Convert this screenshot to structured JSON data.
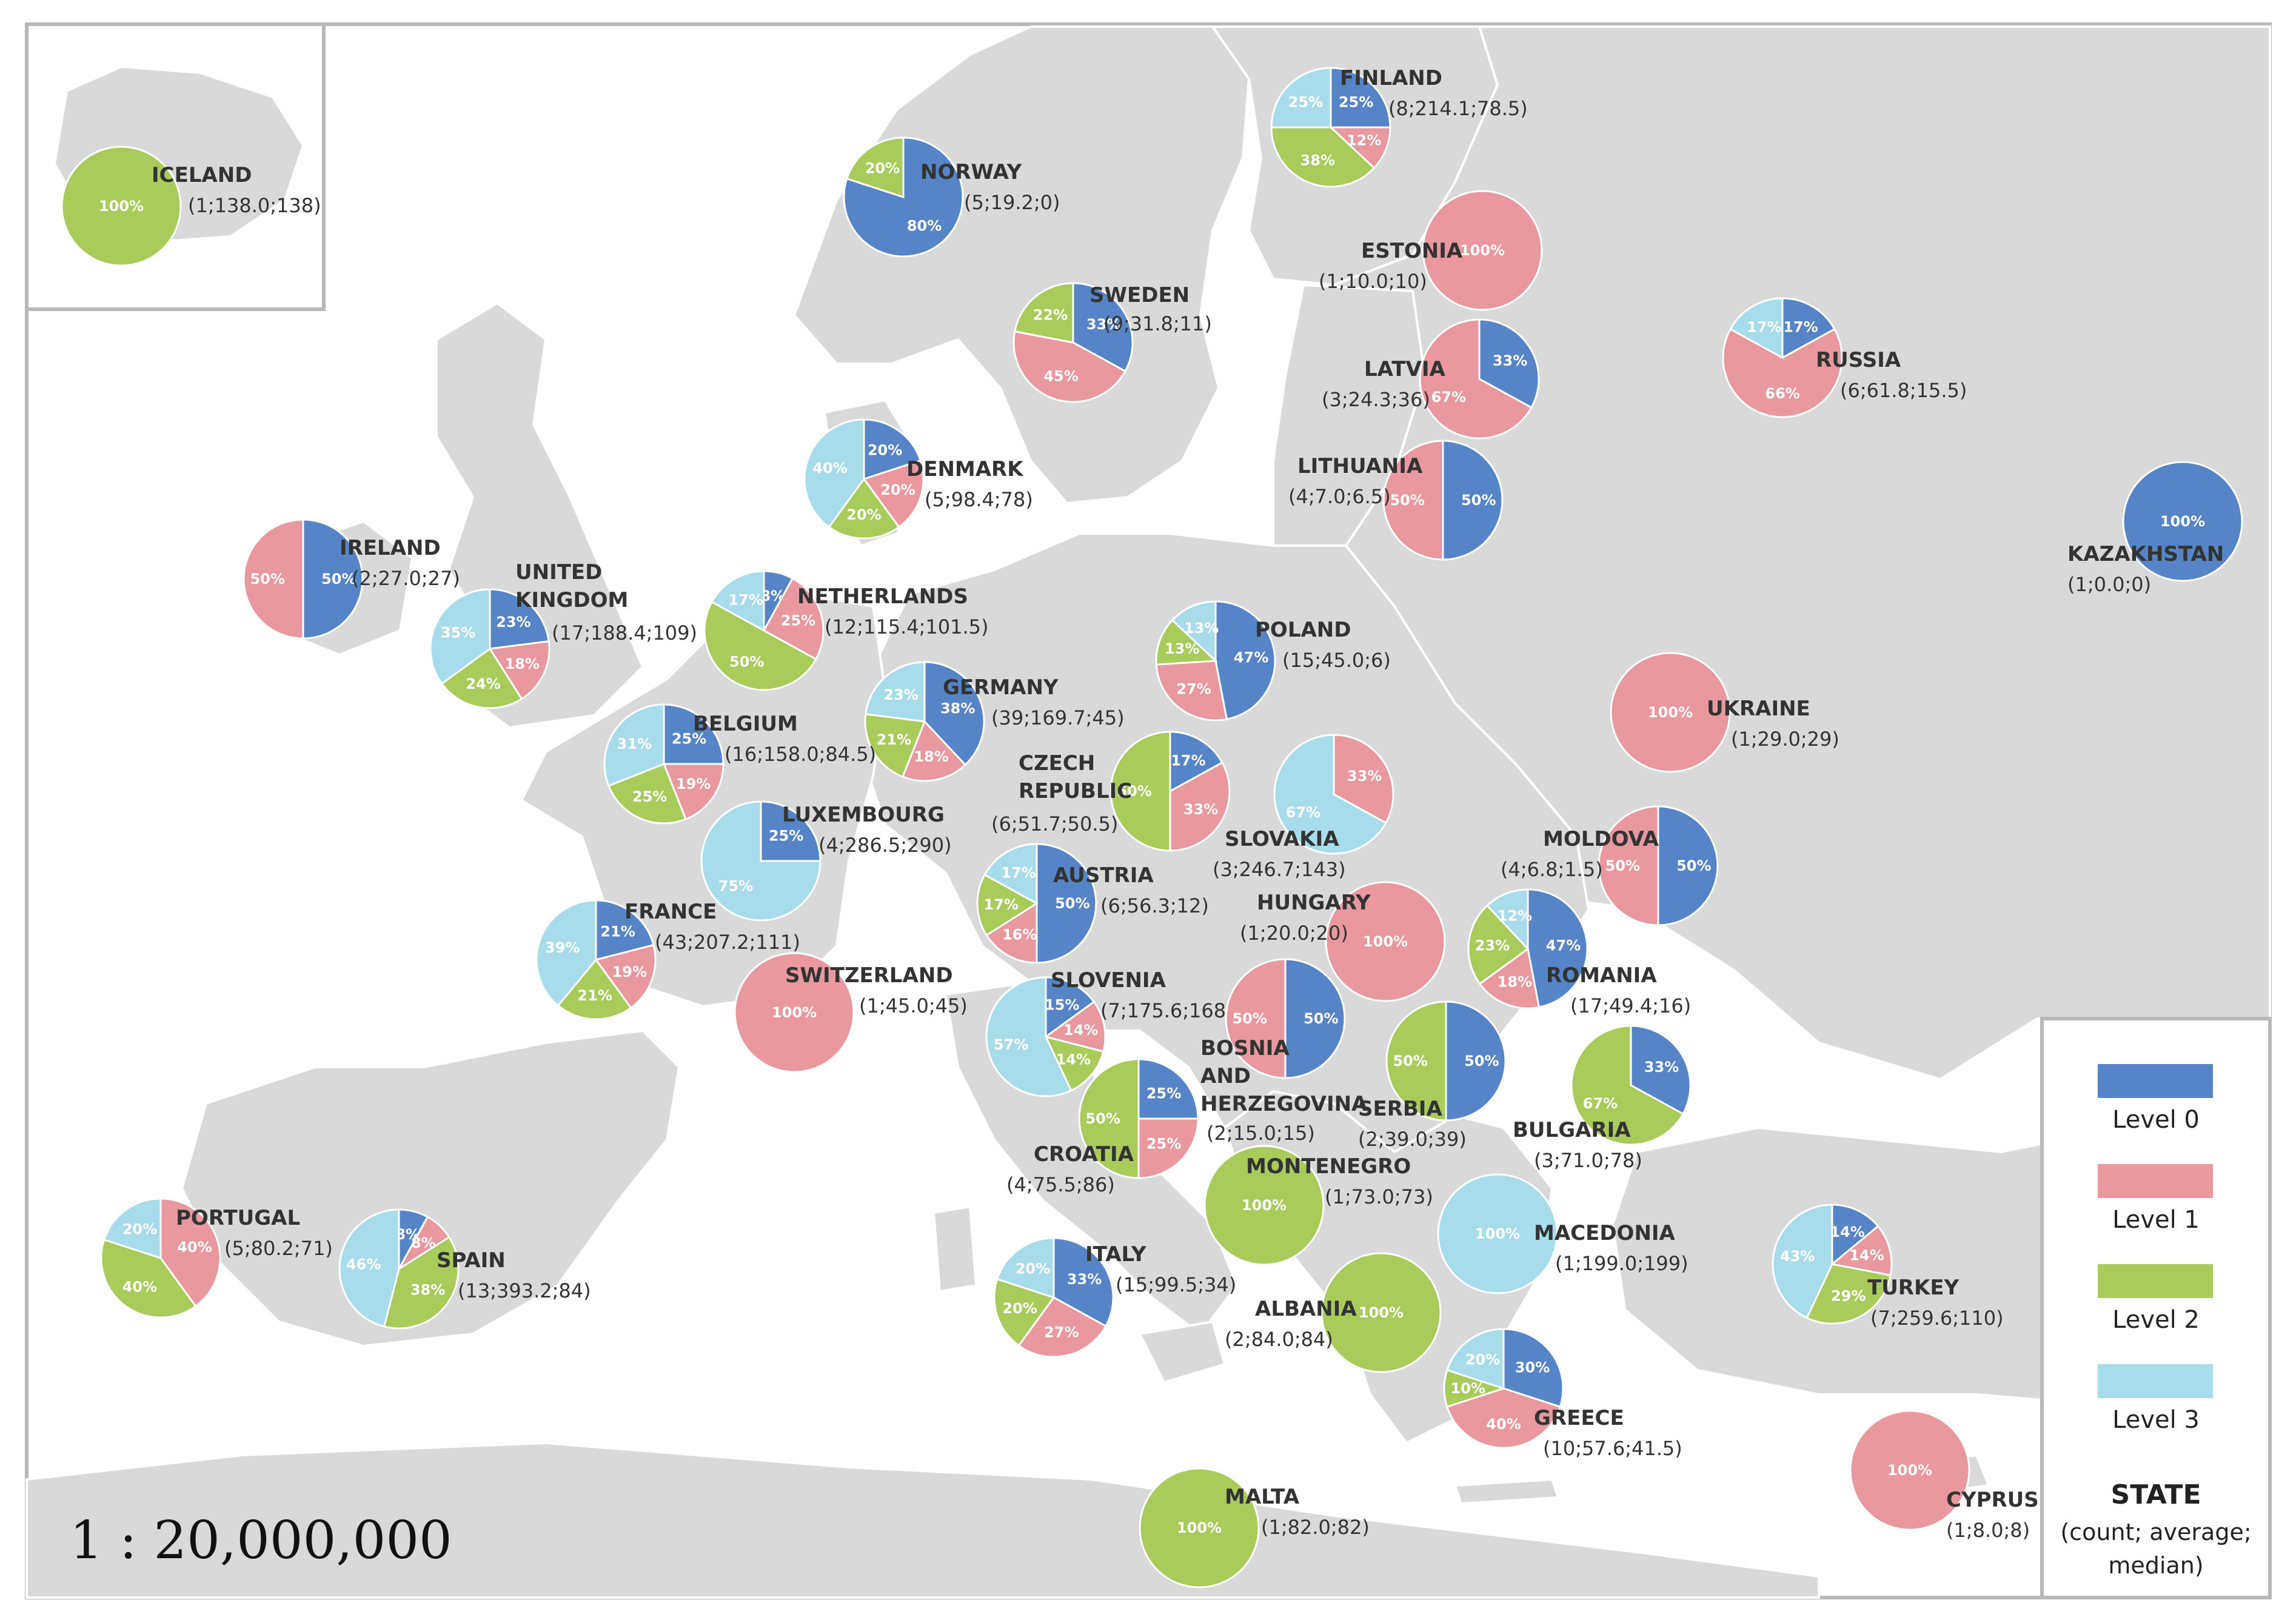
{
  "scale": "1 : 20,000,000",
  "legend": {
    "levels": [
      {
        "key": "L0",
        "label": "Level 0",
        "color": "#5585C6"
      },
      {
        "key": "L1",
        "label": "Level 1",
        "color": "#E8989E"
      },
      {
        "key": "L2",
        "label": "Level 2",
        "color": "#A8CB5C"
      },
      {
        "key": "L3",
        "label": "Level 3",
        "color": "#A7DDEA"
      }
    ],
    "title": "STATE",
    "subtitle_lines": [
      "(count; average;",
      "median)"
    ]
  },
  "countries": [
    {
      "name": [
        "ICELAND"
      ],
      "stats": "(1;138.0;138)",
      "slices": [
        {
          "level": "L2",
          "value": 100,
          "label": "100%"
        }
      ]
    },
    {
      "name": [
        "NORWAY"
      ],
      "stats": "(5;19.2;0)",
      "slices": [
        {
          "level": "L0",
          "value": 80,
          "label": "80%"
        },
        {
          "level": "L2",
          "value": 20,
          "label": "20%"
        }
      ]
    },
    {
      "name": [
        "FINLAND"
      ],
      "stats": "(8;214.1;78.5)",
      "slices": [
        {
          "level": "L0",
          "value": 25,
          "label": "25%"
        },
        {
          "level": "L1",
          "value": 12,
          "label": "12%"
        },
        {
          "level": "L2",
          "value": 38,
          "label": "38%"
        },
        {
          "level": "L3",
          "value": 25,
          "label": "25%"
        }
      ]
    },
    {
      "name": [
        "SWEDEN"
      ],
      "stats": "(9;31.8;11)",
      "slices": [
        {
          "level": "L0",
          "value": 33,
          "label": "33%"
        },
        {
          "level": "L1",
          "value": 45,
          "label": "45%"
        },
        {
          "level": "L2",
          "value": 22,
          "label": "22%"
        }
      ]
    },
    {
      "name": [
        "ESTONIA"
      ],
      "stats": "(1;10.0;10)",
      "slices": [
        {
          "level": "L1",
          "value": 100,
          "label": "100%"
        }
      ]
    },
    {
      "name": [
        "LATVIA"
      ],
      "stats": "(3;24.3;36)",
      "slices": [
        {
          "level": "L0",
          "value": 33,
          "label": "33%"
        },
        {
          "level": "L1",
          "value": 67,
          "label": "67%"
        }
      ]
    },
    {
      "name": [
        "RUSSIA"
      ],
      "stats": "(6;61.8;15.5)",
      "slices": [
        {
          "level": "L0",
          "value": 17,
          "label": "17%"
        },
        {
          "level": "L1",
          "value": 66,
          "label": "66%"
        },
        {
          "level": "L3",
          "value": 17,
          "label": "17%"
        }
      ]
    },
    {
      "name": [
        "LITHUANIA"
      ],
      "stats": "(4;7.0;6.5)",
      "slices": [
        {
          "level": "L0",
          "value": 50,
          "label": "50%"
        },
        {
          "level": "L1",
          "value": 50,
          "label": "50%"
        }
      ]
    },
    {
      "name": [
        "KAZAKHSTAN"
      ],
      "stats": "(1;0.0;0)",
      "slices": [
        {
          "level": "L0",
          "value": 100,
          "label": "100%"
        }
      ]
    },
    {
      "name": [
        "DENMARK"
      ],
      "stats": "(5;98.4;78)",
      "slices": [
        {
          "level": "L0",
          "value": 20,
          "label": "20%"
        },
        {
          "level": "L1",
          "value": 20,
          "label": "20%"
        },
        {
          "level": "L2",
          "value": 20,
          "label": "20%"
        },
        {
          "level": "L3",
          "value": 40,
          "label": "40%"
        }
      ]
    },
    {
      "name": [
        "IRELAND"
      ],
      "stats": "(2;27.0;27)",
      "slices": [
        {
          "level": "L0",
          "value": 50,
          "label": "50%"
        },
        {
          "level": "L1",
          "value": 50,
          "label": "50%"
        }
      ]
    },
    {
      "name": [
        "UNITED",
        "KINGDOM"
      ],
      "stats": "(17;188.4;109)",
      "slices": [
        {
          "level": "L0",
          "value": 23,
          "label": "23%"
        },
        {
          "level": "L1",
          "value": 18,
          "label": "18%"
        },
        {
          "level": "L2",
          "value": 24,
          "label": "24%"
        },
        {
          "level": "L3",
          "value": 35,
          "label": "35%"
        }
      ]
    },
    {
      "name": [
        "NETHERLANDS"
      ],
      "stats": "(12;115.4;101.5)",
      "slices": [
        {
          "level": "L0",
          "value": 8,
          "label": "8%"
        },
        {
          "level": "L1",
          "value": 25,
          "label": "25%"
        },
        {
          "level": "L2",
          "value": 50,
          "label": "50%"
        },
        {
          "level": "L3",
          "value": 17,
          "label": "17%"
        }
      ]
    },
    {
      "name": [
        "POLAND"
      ],
      "stats": "(15;45.0;6)",
      "slices": [
        {
          "level": "L0",
          "value": 47,
          "label": "47%"
        },
        {
          "level": "L1",
          "value": 27,
          "label": "27%"
        },
        {
          "level": "L2",
          "value": 13,
          "label": "13%"
        },
        {
          "level": "L3",
          "value": 13,
          "label": "13%"
        }
      ]
    },
    {
      "name": [
        "GERMANY"
      ],
      "stats": "(39;169.7;45)",
      "slices": [
        {
          "level": "L0",
          "value": 38,
          "label": "38%"
        },
        {
          "level": "L1",
          "value": 18,
          "label": "18%"
        },
        {
          "level": "L2",
          "value": 21,
          "label": "21%"
        },
        {
          "level": "L3",
          "value": 23,
          "label": "23%"
        }
      ]
    },
    {
      "name": [
        "BELGIUM"
      ],
      "stats": "(16;158.0;84.5)",
      "slices": [
        {
          "level": "L0",
          "value": 25,
          "label": "25%"
        },
        {
          "level": "L1",
          "value": 19,
          "label": "19%"
        },
        {
          "level": "L2",
          "value": 25,
          "label": "25%"
        },
        {
          "level": "L3",
          "value": 31,
          "label": "31%"
        }
      ]
    },
    {
      "name": [
        "UKRAINE"
      ],
      "stats": "(1;29.0;29)",
      "slices": [
        {
          "level": "L1",
          "value": 100,
          "label": "100%"
        }
      ]
    },
    {
      "name": [
        "CZECH",
        "REPUBLIC"
      ],
      "stats": "(6;51.7;50.5)",
      "slices": [
        {
          "level": "L0",
          "value": 17,
          "label": "17%"
        },
        {
          "level": "L1",
          "value": 33,
          "label": "33%"
        },
        {
          "level": "L2",
          "value": 50,
          "label": "50%"
        }
      ]
    },
    {
      "name": [
        "SLOVAKIA"
      ],
      "stats": "(3;246.7;143)",
      "slices": [
        {
          "level": "L1",
          "value": 33,
          "label": "33%"
        },
        {
          "level": "L3",
          "value": 67,
          "label": "67%"
        }
      ]
    },
    {
      "name": [
        "LUXEMBOURG"
      ],
      "stats": "(4;286.5;290)",
      "slices": [
        {
          "level": "L0",
          "value": 25,
          "label": "25%"
        },
        {
          "level": "L3",
          "value": 75,
          "label": "75%"
        }
      ]
    },
    {
      "name": [
        "MOLDOVA"
      ],
      "stats": "(4;6.8;1.5)",
      "slices": [
        {
          "level": "L0",
          "value": 50,
          "label": "50%"
        },
        {
          "level": "L1",
          "value": 50,
          "label": "50%"
        }
      ]
    },
    {
      "name": [
        "AUSTRIA"
      ],
      "stats": "(6;56.3;12)",
      "slices": [
        {
          "level": "L0",
          "value": 50,
          "label": "50%"
        },
        {
          "level": "L1",
          "value": 16,
          "label": "16%"
        },
        {
          "level": "L2",
          "value": 17,
          "label": "17%"
        },
        {
          "level": "L3",
          "value": 17,
          "label": "17%"
        }
      ]
    },
    {
      "name": [
        "HUNGARY"
      ],
      "stats": "(1;20.0;20)",
      "slices": [
        {
          "level": "L1",
          "value": 100,
          "label": "100%"
        }
      ]
    },
    {
      "name": [
        "FRANCE"
      ],
      "stats": "(43;207.2;111)",
      "slices": [
        {
          "level": "L0",
          "value": 21,
          "label": "21%"
        },
        {
          "level": "L1",
          "value": 19,
          "label": "19%"
        },
        {
          "level": "L2",
          "value": 21,
          "label": "21%"
        },
        {
          "level": "L3",
          "value": 39,
          "label": "39%"
        }
      ]
    },
    {
      "name": [
        "ROMANIA"
      ],
      "stats": "(17;49.4;16)",
      "slices": [
        {
          "level": "L0",
          "value": 47,
          "label": "47%"
        },
        {
          "level": "L1",
          "value": 18,
          "label": "18%"
        },
        {
          "level": "L2",
          "value": 23,
          "label": "23%"
        },
        {
          "level": "L3",
          "value": 12,
          "label": "12%"
        }
      ]
    },
    {
      "name": [
        "SWITZERLAND"
      ],
      "stats": "(1;45.0;45)",
      "slices": [
        {
          "level": "L1",
          "value": 100,
          "label": "100%"
        }
      ]
    },
    {
      "name": [
        "SLOVENIA"
      ],
      "stats": "(7;175.6;168)",
      "slices": [
        {
          "level": "L0",
          "value": 15,
          "label": "15%"
        },
        {
          "level": "L1",
          "value": 14,
          "label": "14%"
        },
        {
          "level": "L2",
          "value": 14,
          "label": "14%"
        },
        {
          "level": "L3",
          "value": 57,
          "label": "57%"
        }
      ]
    },
    {
      "name": [
        "BOSNIA",
        "AND",
        "HERZEGOVINA"
      ],
      "stats": "(2;15.0;15)",
      "slices": [
        {
          "level": "L0",
          "value": 50,
          "label": "50%"
        },
        {
          "level": "L1",
          "value": 50,
          "label": "50%"
        }
      ]
    },
    {
      "name": [
        "SERBIA"
      ],
      "stats": "(2;39.0;39)",
      "slices": [
        {
          "level": "L0",
          "value": 50,
          "label": "50%"
        },
        {
          "level": "L2",
          "value": 50,
          "label": "50%"
        }
      ]
    },
    {
      "name": [
        "BULGARIA"
      ],
      "stats": "(3;71.0;78)",
      "slices": [
        {
          "level": "L0",
          "value": 33,
          "label": "33%"
        },
        {
          "level": "L2",
          "value": 67,
          "label": "67%"
        }
      ]
    },
    {
      "name": [
        "CROATIA"
      ],
      "stats": "(4;75.5;86)",
      "slices": [
        {
          "level": "L0",
          "value": 25,
          "label": "25%"
        },
        {
          "level": "L1",
          "value": 25,
          "label": "25%"
        },
        {
          "level": "L2",
          "value": 50,
          "label": "50%"
        }
      ]
    },
    {
      "name": [
        "MONTENEGRO"
      ],
      "stats": "(1;73.0;73)",
      "slices": [
        {
          "level": "L2",
          "value": 100,
          "label": "100%"
        }
      ]
    },
    {
      "name": [
        "PORTUGAL"
      ],
      "stats": "(5;80.2;71)",
      "slices": [
        {
          "level": "L1",
          "value": 40,
          "label": "40%"
        },
        {
          "level": "L2",
          "value": 40,
          "label": "40%"
        },
        {
          "level": "L3",
          "value": 20,
          "label": "20%"
        }
      ]
    },
    {
      "name": [
        "SPAIN"
      ],
      "stats": "(13;393.2;84)",
      "slices": [
        {
          "level": "L0",
          "value": 8,
          "label": "8%"
        },
        {
          "level": "L1",
          "value": 8,
          "label": "8%"
        },
        {
          "level": "L2",
          "value": 38,
          "label": "38%"
        },
        {
          "level": "L3",
          "value": 46,
          "label": "46%"
        }
      ]
    },
    {
      "name": [
        "ITALY"
      ],
      "stats": "(15;99.5;34)",
      "slices": [
        {
          "level": "L0",
          "value": 33,
          "label": "33%"
        },
        {
          "level": "L1",
          "value": 27,
          "label": "27%"
        },
        {
          "level": "L2",
          "value": 20,
          "label": "20%"
        },
        {
          "level": "L3",
          "value": 20,
          "label": "20%"
        }
      ]
    },
    {
      "name": [
        "MACEDONIA"
      ],
      "stats": "(1;199.0;199)",
      "slices": [
        {
          "level": "L3",
          "value": 100,
          "label": "100%"
        }
      ]
    },
    {
      "name": [
        "TURKEY"
      ],
      "stats": "(7;259.6;110)",
      "slices": [
        {
          "level": "L0",
          "value": 14,
          "label": "14%"
        },
        {
          "level": "L1",
          "value": 14,
          "label": "14%"
        },
        {
          "level": "L2",
          "value": 29,
          "label": "29%"
        },
        {
          "level": "L3",
          "value": 43,
          "label": "43%"
        }
      ]
    },
    {
      "name": [
        "ALBANIA"
      ],
      "stats": "(2;84.0;84)",
      "slices": [
        {
          "level": "L2",
          "value": 100,
          "label": "100%"
        }
      ]
    },
    {
      "name": [
        "GREECE"
      ],
      "stats": "(10;57.6;41.5)",
      "slices": [
        {
          "level": "L0",
          "value": 30,
          "label": "30%"
        },
        {
          "level": "L1",
          "value": 40,
          "label": "40%"
        },
        {
          "level": "L2",
          "value": 10,
          "label": "10%"
        },
        {
          "level": "L3",
          "value": 20,
          "label": "20%"
        }
      ]
    },
    {
      "name": [
        "MALTA"
      ],
      "stats": "(1;82.0;82)",
      "slices": [
        {
          "level": "L2",
          "value": 100,
          "label": "100%"
        }
      ]
    },
    {
      "name": [
        "CYPRUS"
      ],
      "stats": "(1;8.0;8)",
      "slices": [
        {
          "level": "L1",
          "value": 100,
          "label": "100%"
        }
      ]
    }
  ]
}
